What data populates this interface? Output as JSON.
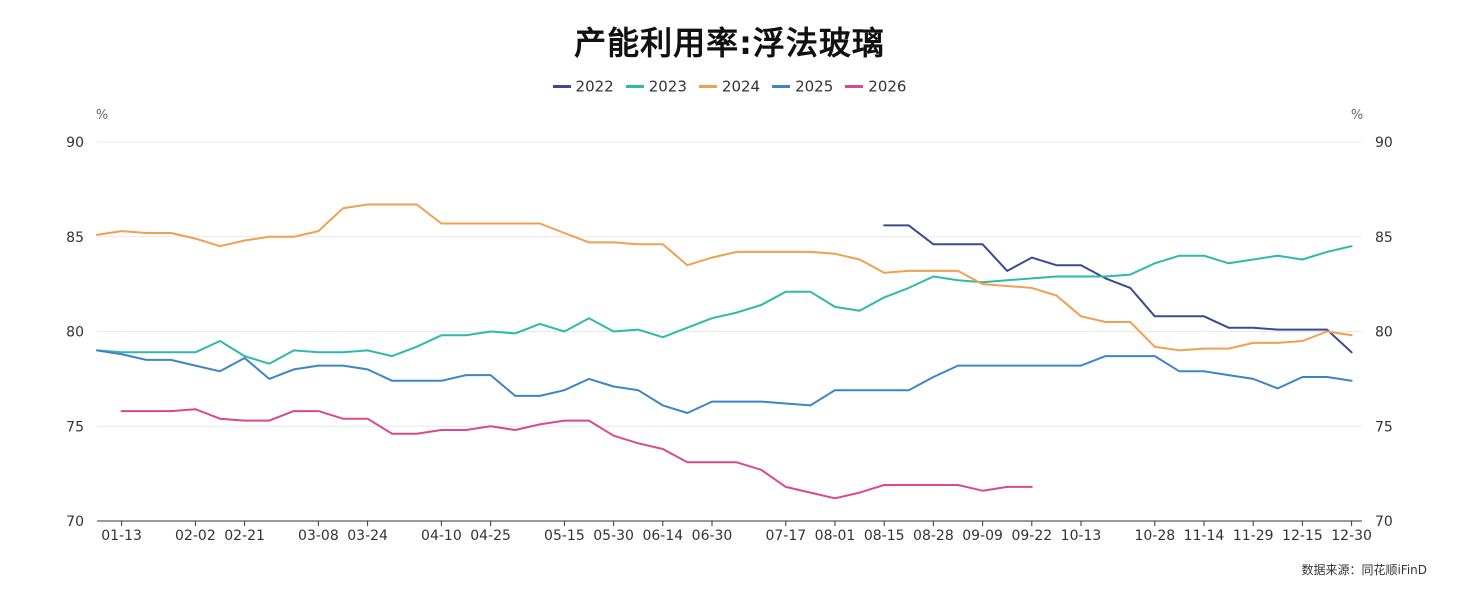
{
  "title": "产能利用率:浮法玻璃",
  "source": "数据来源：同花顺iFinD",
  "chart_data": {
    "type": "line",
    "unit_left": "%",
    "unit_right": "%",
    "ylim": [
      70,
      90
    ],
    "yticks": [
      "70",
      "75",
      "80",
      "85",
      "90"
    ],
    "xlim": [
      1,
      52
    ],
    "xticks": [
      {
        "week": 2,
        "label": "01-13"
      },
      {
        "week": 5,
        "label": "02-02"
      },
      {
        "week": 7,
        "label": "02-21"
      },
      {
        "week": 10,
        "label": "03-08"
      },
      {
        "week": 12,
        "label": "03-24"
      },
      {
        "week": 15,
        "label": "04-10"
      },
      {
        "week": 17,
        "label": "04-25"
      },
      {
        "week": 20,
        "label": "05-15"
      },
      {
        "week": 22,
        "label": "05-30"
      },
      {
        "week": 24,
        "label": "06-14"
      },
      {
        "week": 26,
        "label": "06-30"
      },
      {
        "week": 29,
        "label": "07-17"
      },
      {
        "week": 31,
        "label": "08-01"
      },
      {
        "week": 33,
        "label": "08-15"
      },
      {
        "week": 35,
        "label": "08-28"
      },
      {
        "week": 37,
        "label": "09-09"
      },
      {
        "week": 39,
        "label": "09-22"
      },
      {
        "week": 41,
        "label": "10-13"
      },
      {
        "week": 44,
        "label": "10-28"
      },
      {
        "week": 46,
        "label": "11-14"
      },
      {
        "week": 48,
        "label": "11-29"
      },
      {
        "week": 50,
        "label": "12-15"
      },
      {
        "week": 52,
        "label": "12-30"
      }
    ],
    "legend_position": "top",
    "series": [
      {
        "name": "2022",
        "color": "#3a4a94",
        "x": [
          33,
          34,
          35,
          36,
          37,
          38,
          39,
          40,
          41,
          42,
          43,
          44,
          45,
          46,
          47,
          48,
          49,
          50,
          51,
          52
        ],
        "y": [
          85.6,
          85.6,
          84.6,
          84.6,
          84.6,
          83.2,
          83.9,
          83.5,
          83.5,
          82.8,
          82.3,
          80.8,
          80.8,
          80.8,
          80.2,
          80.2,
          80.1,
          80.1,
          80.1,
          78.9
        ]
      },
      {
        "name": "2023",
        "color": "#2dbaa8",
        "x": [
          1,
          2,
          3,
          4,
          5,
          6,
          7,
          8,
          9,
          10,
          11,
          12,
          13,
          14,
          15,
          16,
          17,
          18,
          19,
          20,
          21,
          22,
          23,
          24,
          25,
          26,
          27,
          28,
          29,
          30,
          31,
          32,
          33,
          34,
          35,
          36,
          37,
          38,
          39,
          40,
          41,
          42,
          43,
          44,
          45,
          46,
          47,
          48,
          49,
          50,
          51,
          52
        ],
        "y": [
          79.0,
          78.9,
          78.9,
          78.9,
          78.9,
          79.5,
          78.7,
          78.3,
          79.0,
          78.9,
          78.9,
          79.0,
          78.7,
          79.2,
          79.8,
          79.8,
          80.0,
          79.9,
          80.4,
          80.0,
          80.7,
          80.0,
          80.1,
          79.7,
          80.2,
          80.7,
          81.0,
          81.4,
          82.1,
          82.1,
          81.3,
          81.1,
          81.8,
          82.3,
          82.9,
          82.7,
          82.6,
          82.7,
          82.8,
          82.9,
          82.9,
          82.9,
          83.0,
          83.6,
          84.0,
          84.0,
          83.6,
          83.8,
          84.0,
          83.8,
          84.2,
          84.5
        ]
      },
      {
        "name": "2024",
        "color": "#f0a050",
        "x": [
          1,
          2,
          3,
          4,
          5,
          6,
          7,
          8,
          9,
          10,
          11,
          12,
          13,
          14,
          15,
          16,
          17,
          18,
          19,
          20,
          21,
          22,
          23,
          24,
          25,
          26,
          27,
          28,
          29,
          30,
          31,
          32,
          33,
          34,
          35,
          36,
          37,
          38,
          39,
          40,
          41,
          42,
          43,
          44,
          45,
          46,
          47,
          48,
          49,
          50,
          51,
          52
        ],
        "y": [
          85.1,
          85.3,
          85.2,
          85.2,
          84.9,
          84.5,
          84.8,
          85.0,
          85.0,
          85.3,
          86.5,
          86.7,
          86.7,
          86.7,
          85.7,
          85.7,
          85.7,
          85.7,
          85.7,
          85.2,
          84.7,
          84.7,
          84.6,
          84.6,
          83.5,
          83.9,
          84.2,
          84.2,
          84.2,
          84.2,
          84.1,
          83.8,
          83.1,
          83.2,
          83.2,
          83.2,
          82.5,
          82.4,
          82.3,
          81.9,
          80.8,
          80.5,
          80.5,
          79.2,
          79.0,
          79.1,
          79.1,
          79.4,
          79.4,
          79.5,
          80.0,
          79.8
        ]
      },
      {
        "name": "2025",
        "color": "#3d85c8",
        "x": [
          1,
          2,
          3,
          4,
          5,
          6,
          7,
          8,
          9,
          10,
          11,
          12,
          13,
          14,
          15,
          16,
          17,
          18,
          19,
          20,
          21,
          22,
          23,
          24,
          25,
          26,
          27,
          28,
          29,
          30,
          31,
          32,
          33,
          34,
          35,
          36,
          37,
          38,
          39,
          40,
          41,
          42,
          43,
          44,
          45,
          46,
          47,
          48,
          49,
          50,
          51,
          52
        ],
        "y": [
          79.0,
          78.8,
          78.5,
          78.5,
          78.2,
          77.9,
          78.6,
          77.5,
          78.0,
          78.2,
          78.2,
          78.0,
          77.4,
          77.4,
          77.4,
          77.7,
          77.7,
          76.6,
          76.6,
          76.9,
          77.5,
          77.1,
          76.9,
          76.1,
          75.7,
          76.3,
          76.3,
          76.3,
          76.2,
          76.1,
          76.9,
          76.9,
          76.9,
          76.9,
          77.6,
          78.2,
          78.2,
          78.2,
          78.2,
          78.2,
          78.2,
          78.7,
          78.7,
          78.7,
          77.9,
          77.9,
          77.7,
          77.5,
          77.0,
          77.6,
          77.6,
          77.4
        ]
      },
      {
        "name": "2026",
        "color": "#d84a8c",
        "x": [
          2,
          3,
          4,
          5,
          6,
          7,
          8,
          9,
          10,
          11,
          12,
          13,
          14,
          15,
          16,
          17,
          18,
          19,
          20,
          21,
          22,
          23,
          24,
          25,
          26,
          27,
          28,
          29,
          30,
          31,
          32,
          33,
          34,
          35,
          36,
          37,
          38,
          39
        ],
        "y": [
          75.8,
          75.8,
          75.8,
          75.9,
          75.4,
          75.3,
          75.3,
          75.8,
          75.8,
          75.4,
          75.4,
          74.6,
          74.6,
          74.8,
          74.8,
          75.0,
          74.8,
          75.1,
          75.3,
          75.3,
          74.5,
          74.1,
          73.8,
          73.1,
          73.1,
          73.1,
          72.7,
          71.8,
          71.5,
          71.2,
          71.5,
          71.9,
          71.9,
          71.9,
          71.9,
          71.6,
          71.8,
          71.8
        ]
      }
    ]
  }
}
